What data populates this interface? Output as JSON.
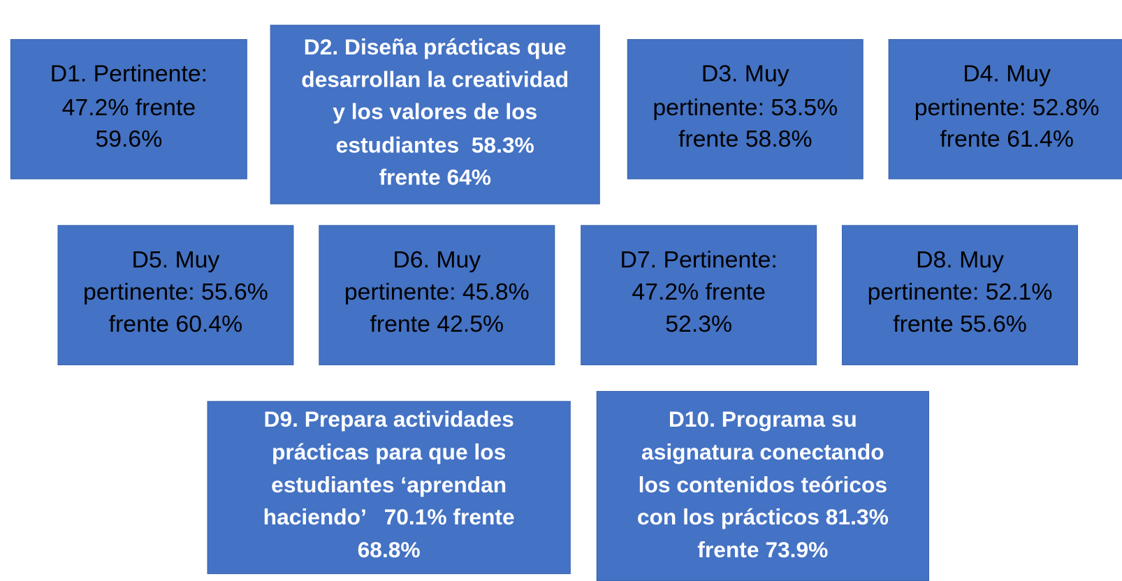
{
  "boxes": [
    {
      "lines": [
        "D1. Pertinente:",
        "47.2% frente",
        "59.6%"
      ]
    },
    {
      "lines": [
        "D2. Diseña prácticas que",
        "desarrollan la creatividad",
        "y los valores de los",
        "estudiantes  58.3%",
        "frente 64%"
      ]
    },
    {
      "lines": [
        "D3. Muy",
        "pertinente: 53.5%",
        "frente 58.8%"
      ]
    },
    {
      "lines": [
        "D4. Muy",
        "pertinente: 52.8%",
        "frente 61.4%"
      ]
    },
    {
      "lines": [
        "D5. Muy",
        "pertinente: 55.6%",
        "frente 60.4%"
      ]
    },
    {
      "lines": [
        "D6. Muy",
        "pertinente: 45.8%",
        "frente 42.5%"
      ]
    },
    {
      "lines": [
        "D7. Pertinente:",
        "47.2% frente",
        "52.3%"
      ]
    },
    {
      "lines": [
        "D8. Muy",
        "pertinente: 52.1%",
        "frente 55.6%"
      ]
    },
    {
      "lines": [
        "D9. Prepara actividades",
        "prácticas para que los",
        "estudiantes ‘aprendan",
        "haciendo’   70.1% frente",
        "68.8%"
      ]
    },
    {
      "lines": [
        "D10. Programa su",
        "asignatura conectando",
        "los contenidos teóricos",
        "con los prácticos 81.3%",
        "frente 73.9%"
      ]
    }
  ]
}
